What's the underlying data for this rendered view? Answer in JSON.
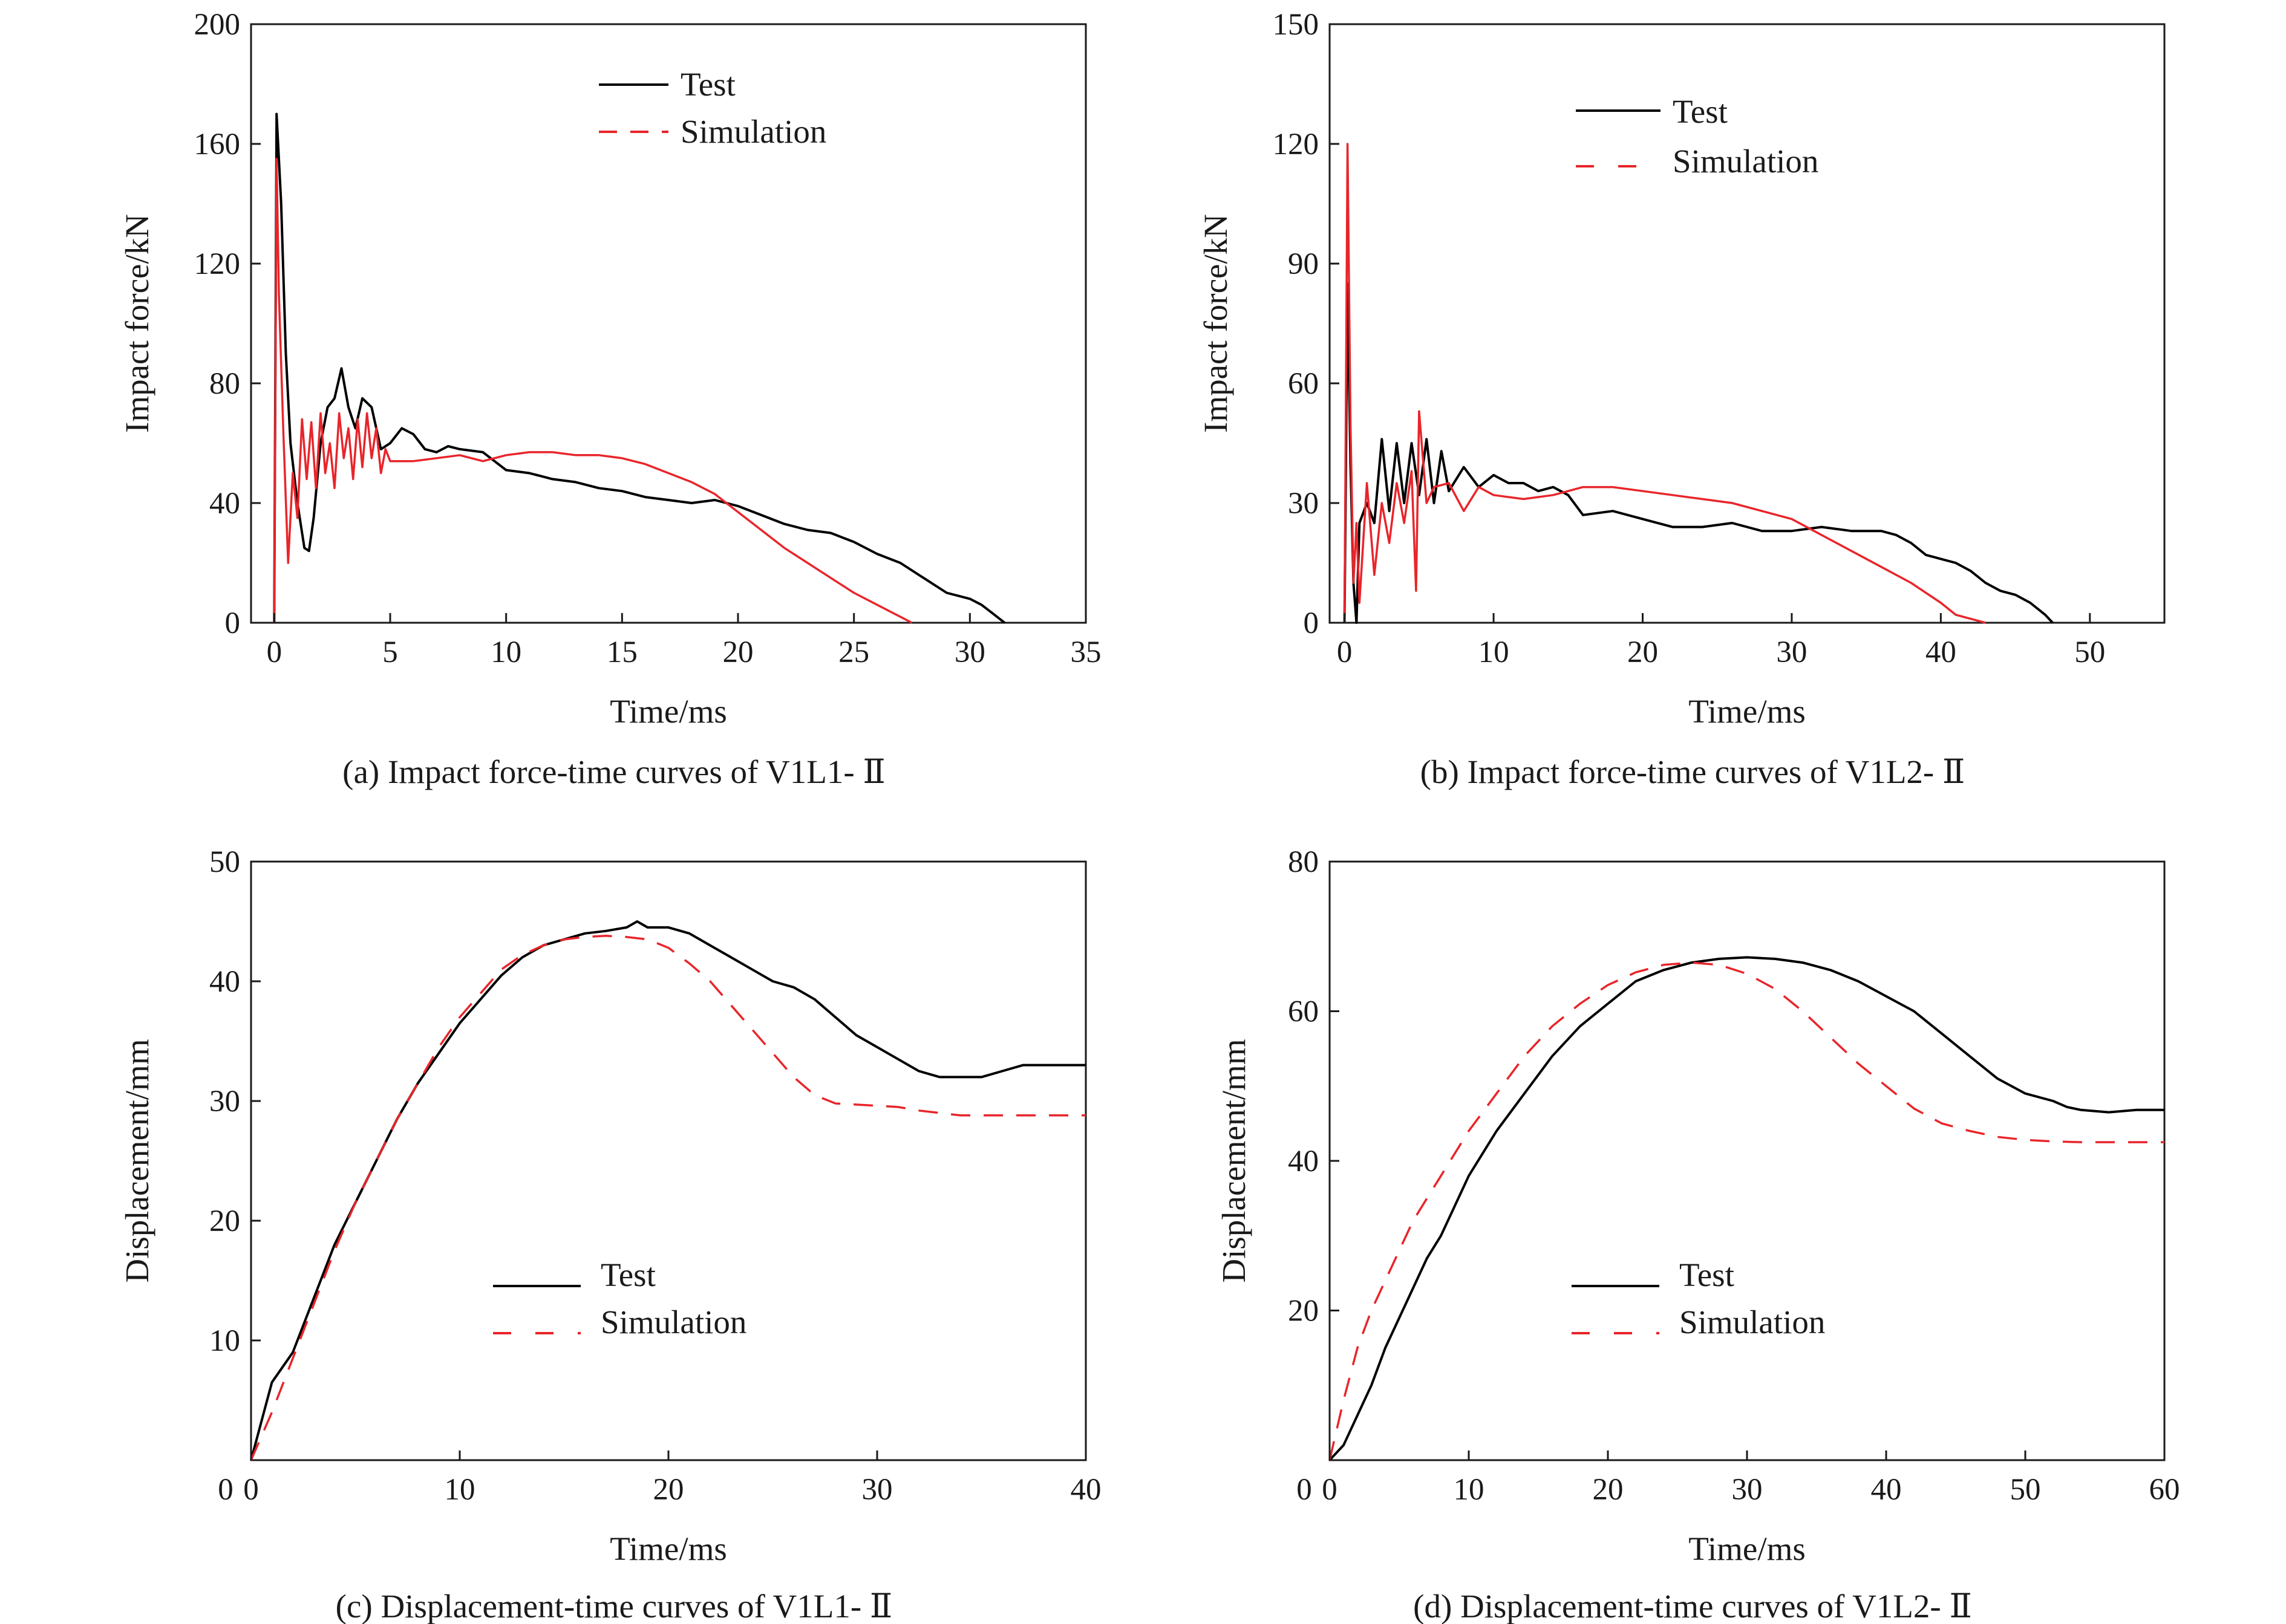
{
  "colors": {
    "test": "#000000",
    "simulation": "#e8252a",
    "axis": "#1a1a1a"
  },
  "chart_data": [
    {
      "type": "line",
      "caption": "(a) Impact force-time curves of V1L1- Ⅱ",
      "xlabel": "Time/ms",
      "ylabel": "Impact force/kN",
      "xlim": [
        -1,
        35
      ],
      "ylim": [
        0,
        200
      ],
      "xticks": [
        0,
        5,
        10,
        15,
        20,
        25,
        30,
        35
      ],
      "xtick_labels": [
        "0",
        "5",
        "10",
        "15",
        "20",
        "25",
        "30",
        "35"
      ],
      "yticks": [
        0,
        40,
        80,
        120,
        160,
        200
      ],
      "ytick_labels": [
        "0",
        "40",
        "80",
        "120",
        "160",
        "200"
      ],
      "legend_position": "top-center",
      "grid": false,
      "series": [
        {
          "name": "Test",
          "style": "solid",
          "x": [
            0,
            0.1,
            0.3,
            0.5,
            0.7,
            1.0,
            1.3,
            1.5,
            1.7,
            2.0,
            2.3,
            2.6,
            2.9,
            3.2,
            3.5,
            3.8,
            4.2,
            4.6,
            5.0,
            5.5,
            6.0,
            6.5,
            7.0,
            7.5,
            8.0,
            9.0,
            10.0,
            11.0,
            12.0,
            13.0,
            14.0,
            15.0,
            16.0,
            17.0,
            18.0,
            19.0,
            20.0,
            21.0,
            22.0,
            23.0,
            24.0,
            25.0,
            26.0,
            27.0,
            28.0,
            29.0,
            30.0,
            30.5,
            31.0,
            31.5
          ],
          "y": [
            0,
            170,
            140,
            90,
            60,
            40,
            25,
            24,
            35,
            60,
            72,
            75,
            85,
            72,
            65,
            75,
            72,
            58,
            60,
            65,
            63,
            58,
            57,
            59,
            58,
            57,
            51,
            50,
            48,
            47,
            45,
            44,
            42,
            41,
            40,
            41,
            39,
            36,
            33,
            31,
            30,
            27,
            23,
            20,
            15,
            10,
            8,
            6,
            3,
            0
          ]
        },
        {
          "name": "Simulation",
          "style": "dashed",
          "x": [
            0,
            0.1,
            0.2,
            0.4,
            0.6,
            0.8,
            1.0,
            1.2,
            1.4,
            1.6,
            1.8,
            2.0,
            2.2,
            2.4,
            2.6,
            2.8,
            3.0,
            3.2,
            3.4,
            3.6,
            3.8,
            4.0,
            4.2,
            4.4,
            4.6,
            4.8,
            5.0,
            6.0,
            7.0,
            8.0,
            9.0,
            10.0,
            11.0,
            12.0,
            13.0,
            14.0,
            15.0,
            16.0,
            17.0,
            18.0,
            19.0,
            20.0,
            21.0,
            22.0,
            23.0,
            24.0,
            25.0,
            26.0,
            27.0,
            27.5
          ],
          "y": [
            0,
            155,
            110,
            62,
            20,
            50,
            35,
            68,
            48,
            67,
            45,
            70,
            50,
            60,
            45,
            70,
            55,
            65,
            48,
            68,
            52,
            70,
            55,
            65,
            50,
            58,
            54,
            54,
            55,
            56,
            54,
            56,
            57,
            57,
            56,
            56,
            55,
            53,
            50,
            47,
            43,
            37,
            31,
            25,
            20,
            15,
            10,
            6,
            2,
            0
          ]
        }
      ]
    },
    {
      "type": "line",
      "caption": "(b) Impact force-time curves of V1L2- Ⅱ",
      "xlabel": "Time/ms",
      "ylabel": "Impact force/kN",
      "xlim": [
        -1,
        55
      ],
      "ylim": [
        0,
        150
      ],
      "xticks": [
        0,
        10,
        20,
        30,
        40,
        50
      ],
      "xtick_labels": [
        "0",
        "10",
        "20",
        "30",
        "40",
        "50"
      ],
      "yticks": [
        0,
        30,
        60,
        90,
        120,
        150
      ],
      "ytick_labels": [
        "0",
        "30",
        "60",
        "90",
        "120",
        "150"
      ],
      "legend_position": "top-center",
      "grid": false,
      "series": [
        {
          "name": "Test",
          "style": "solid",
          "x": [
            0,
            0.2,
            0.4,
            0.6,
            0.8,
            1.0,
            1.5,
            2.0,
            2.5,
            3.0,
            3.5,
            4.0,
            4.5,
            5.0,
            5.5,
            6.0,
            6.5,
            7.0,
            8.0,
            9.0,
            10.0,
            11.0,
            12.0,
            13.0,
            14.0,
            15.0,
            16.0,
            18.0,
            20.0,
            22.0,
            24.0,
            26.0,
            28.0,
            30.0,
            32.0,
            34.0,
            36.0,
            37.0,
            38.0,
            39.0,
            40.0,
            41.0,
            42.0,
            43.0,
            44.0,
            45.0,
            46.0,
            47.0,
            47.5
          ],
          "y": [
            0,
            85,
            40,
            10,
            0,
            25,
            30,
            25,
            46,
            28,
            45,
            30,
            45,
            32,
            46,
            30,
            43,
            33,
            39,
            34,
            37,
            35,
            35,
            33,
            34,
            32,
            27,
            28,
            26,
            24,
            24,
            25,
            23,
            23,
            24,
            23,
            23,
            22,
            20,
            17,
            16,
            15,
            13,
            10,
            8,
            7,
            5,
            2,
            0
          ]
        },
        {
          "name": "Simulation",
          "style": "dashed",
          "x": [
            0,
            0.2,
            0.4,
            0.6,
            0.8,
            1.0,
            1.5,
            2.0,
            2.5,
            3.0,
            3.5,
            4.0,
            4.5,
            4.8,
            5.0,
            5.5,
            6.0,
            7.0,
            8.0,
            9.0,
            10.0,
            12.0,
            14.0,
            16.0,
            18.0,
            20.0,
            22.0,
            24.0,
            26.0,
            28.0,
            30.0,
            32.0,
            34.0,
            36.0,
            38.0,
            40.0,
            41.0,
            42.0,
            43.0
          ],
          "y": [
            0,
            120,
            50,
            10,
            25,
            5,
            35,
            12,
            30,
            20,
            35,
            25,
            38,
            8,
            53,
            30,
            34,
            35,
            28,
            34,
            32,
            31,
            32,
            34,
            34,
            33,
            32,
            31,
            30,
            28,
            26,
            22,
            18,
            14,
            10,
            5,
            2,
            1,
            0
          ]
        }
      ]
    },
    {
      "type": "line",
      "caption": "(c) Displacement-time curves of V1L1- Ⅱ",
      "xlabel": "Time/ms",
      "ylabel": "Displacement/mm",
      "xlim": [
        0,
        40
      ],
      "ylim": [
        0,
        50
      ],
      "xticks": [
        0,
        10,
        20,
        30,
        40
      ],
      "xtick_labels": [
        "0",
        "10",
        "20",
        "30",
        "40"
      ],
      "yticks": [
        10,
        20,
        30,
        40,
        50
      ],
      "ytick_labels": [
        "10",
        "20",
        "30",
        "40",
        "50"
      ],
      "legend_position": "center",
      "grid": false,
      "series": [
        {
          "name": "Test",
          "style": "solid",
          "x": [
            0,
            1,
            2,
            3,
            4,
            5,
            6,
            7,
            8,
            9,
            10,
            11,
            12,
            13,
            14,
            15,
            16,
            17,
            18,
            18.5,
            19,
            20,
            21,
            22,
            23,
            24,
            25,
            26,
            27,
            28,
            29,
            30,
            31,
            32,
            33,
            34,
            35,
            36,
            37,
            38,
            39,
            40
          ],
          "y": [
            0,
            6.5,
            9,
            13.5,
            18,
            21.5,
            25,
            28.5,
            31.5,
            34,
            36.5,
            38.5,
            40.5,
            42,
            43,
            43.5,
            44,
            44.2,
            44.5,
            45,
            44.5,
            44.5,
            44,
            43,
            42,
            41,
            40,
            39.5,
            38.5,
            37,
            35.5,
            34.5,
            33.5,
            32.5,
            32,
            32,
            32,
            32.5,
            33,
            33,
            33,
            33
          ]
        },
        {
          "name": "Simulation",
          "style": "dashed",
          "x": [
            0,
            1,
            2,
            3,
            4,
            5,
            6,
            7,
            8,
            9,
            10,
            11,
            12,
            13,
            14,
            15,
            16,
            17,
            18,
            19,
            20,
            21,
            22,
            23,
            24,
            25,
            26,
            27,
            28,
            29,
            30,
            31,
            32,
            33,
            34,
            35,
            36,
            37,
            38,
            39,
            40
          ],
          "y": [
            0,
            4,
            8.5,
            13,
            17.5,
            21.5,
            25,
            28.5,
            31.5,
            34.5,
            37,
            39,
            41,
            42.2,
            43,
            43.5,
            43.7,
            43.8,
            43.7,
            43.5,
            42.8,
            41.5,
            40,
            38,
            36,
            34,
            32,
            30.5,
            29.8,
            29.7,
            29.6,
            29.5,
            29.2,
            29,
            28.8,
            28.8,
            28.8,
            28.8,
            28.8,
            28.8,
            28.8
          ]
        }
      ]
    },
    {
      "type": "line",
      "caption": "(d) Displacement-time curves of V1L2- Ⅱ",
      "xlabel": "Time/ms",
      "ylabel": "Displacement/mm",
      "xlim": [
        0,
        60
      ],
      "ylim": [
        0,
        80
      ],
      "xticks": [
        0,
        10,
        20,
        30,
        40,
        50,
        60
      ],
      "xtick_labels": [
        "0",
        "10",
        "20",
        "30",
        "40",
        "50",
        "60"
      ],
      "yticks": [
        20,
        40,
        60,
        80
      ],
      "ytick_labels": [
        "20",
        "40",
        "60",
        "80"
      ],
      "legend_position": "center",
      "grid": false,
      "series": [
        {
          "name": "Test",
          "style": "solid",
          "x": [
            0,
            1,
            2,
            3,
            4,
            5,
            6,
            7,
            8,
            9,
            10,
            12,
            14,
            16,
            18,
            20,
            22,
            24,
            26,
            28,
            30,
            32,
            34,
            36,
            38,
            40,
            42,
            44,
            46,
            48,
            50,
            52,
            53,
            54,
            56,
            58,
            60
          ],
          "y": [
            0,
            2,
            6,
            10,
            15,
            19,
            23,
            27,
            30,
            34,
            38,
            44,
            49,
            54,
            58,
            61,
            64,
            65.5,
            66.5,
            67,
            67.2,
            67,
            66.5,
            65.5,
            64,
            62,
            60,
            57,
            54,
            51,
            49,
            48,
            47.2,
            46.8,
            46.5,
            46.8,
            46.8
          ]
        },
        {
          "name": "Simulation",
          "style": "dashed",
          "x": [
            0,
            1,
            2,
            3,
            4,
            5,
            6,
            8,
            10,
            12,
            14,
            16,
            18,
            20,
            22,
            24,
            26,
            28,
            30,
            32,
            34,
            36,
            38,
            40,
            42,
            44,
            46,
            48,
            50,
            52,
            54,
            56,
            58,
            60
          ],
          "y": [
            0,
            8,
            15,
            20,
            24,
            28,
            32,
            38,
            44,
            49,
            54,
            58,
            61,
            63.5,
            65.2,
            66.2,
            66.5,
            66.2,
            65,
            63,
            60,
            56.5,
            53,
            50,
            47,
            45,
            44,
            43.2,
            42.8,
            42.6,
            42.5,
            42.5,
            42.5,
            42.5
          ]
        }
      ]
    }
  ]
}
